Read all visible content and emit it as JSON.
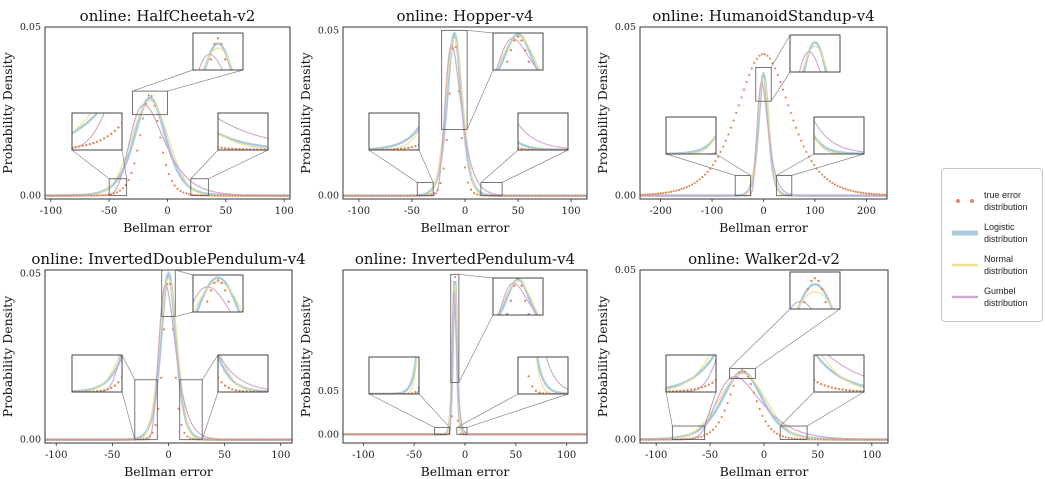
{
  "chart_data": [
    {
      "type": "line",
      "title": "online: HalfCheetah-v2",
      "xlabel": "Bellman error",
      "ylabel": "Probability Density",
      "xticks": [
        -100,
        -50,
        0,
        50,
        100
      ],
      "yticks": [
        0.0,
        0.05
      ],
      "xlim": [
        -105,
        105
      ],
      "ylim": [
        -0.001,
        0.05
      ],
      "peak_center": -15,
      "peak_value": 0.029,
      "logistic_scale": 9,
      "true_error": {
        "peak": 0.03,
        "scale": 9,
        "points": 85
      }
    },
    {
      "type": "line",
      "title": "online: Hopper-v4",
      "xlabel": "Bellman error",
      "ylabel": "Probability Density",
      "xticks": [
        -100,
        -50,
        0,
        50,
        100
      ],
      "yticks": [
        0.0,
        0.05
      ],
      "xlim": [
        -115,
        115
      ],
      "ylim": [
        -0.001,
        0.051
      ],
      "peak_center": -10,
      "peak_value": 0.049,
      "logistic_scale": 4.6,
      "true_error": {
        "peak": 0.047,
        "scale": 5.2,
        "points": 80
      }
    },
    {
      "type": "line",
      "title": "online: HumanoidStandup-v4",
      "xlabel": "Bellman error",
      "ylabel": "Probability Density",
      "xticks": [
        -200,
        -100,
        0,
        100,
        200
      ],
      "yticks": [
        0.0,
        0.05
      ],
      "xlim": [
        -240,
        240
      ],
      "ylim": [
        -0.001,
        0.05
      ],
      "peak_center": 0,
      "peak_value": 0.036,
      "logistic_scale": 6.5,
      "true_error": {
        "peak": 0.042,
        "scale": 55,
        "points": 95
      }
    },
    {
      "type": "line",
      "title": "online: InvertedDoublePendulum-v4",
      "xlabel": "Bellman error",
      "ylabel": "Probability Density",
      "xticks": [
        -100,
        -50,
        0,
        50,
        100
      ],
      "yticks": [
        0.0,
        0.05
      ],
      "xlim": [
        -110,
        110
      ],
      "ylim": [
        -0.001,
        0.051
      ],
      "peak_center": 0,
      "peak_value": 0.05,
      "logistic_scale": 4.5,
      "true_error": {
        "peak": 0.049,
        "scale": 4.8,
        "points": 85
      }
    },
    {
      "type": "line",
      "title": "online: InvertedPendulum-v4",
      "xlabel": "Bellman error",
      "ylabel": "Probability Density",
      "xticks": [
        -100,
        -50,
        0,
        50,
        100
      ],
      "yticks": [
        0.0,
        0.05
      ],
      "xlim": [
        -120,
        120
      ],
      "ylim": [
        -0.01,
        0.19
      ],
      "peak_center": -10,
      "peak_value": 0.18,
      "logistic_scale": 1.3,
      "true_error": {
        "peak": 0.183,
        "scale": 1.2,
        "points": 85
      }
    },
    {
      "type": "line",
      "title": "online: Walker2d-v2",
      "xlabel": "Bellman error",
      "ylabel": "Probability Density",
      "xticks": [
        -100,
        -50,
        0,
        50,
        100
      ],
      "yticks": [
        0.0,
        0.05
      ],
      "xlim": [
        -115,
        115
      ],
      "ylim": [
        -0.001,
        0.05
      ],
      "peak_center": -20,
      "peak_value": 0.02,
      "logistic_scale": 12.5,
      "true_error": {
        "peak": 0.0205,
        "scale": 13,
        "points": 85
      }
    }
  ],
  "legend": {
    "items": [
      {
        "label": "true error distribution",
        "color": "#e08a5d",
        "style": "dots"
      },
      {
        "label": "Logistic distribution",
        "color": "#a8cbe0",
        "style": "thick-line"
      },
      {
        "label": "Normal distribution",
        "color": "#efe08c",
        "style": "line"
      },
      {
        "label": "Gumbel distribution",
        "color": "#cfa7cf",
        "style": "line"
      }
    ]
  },
  "colors": {
    "true_error": "#e08a5d",
    "logistic": "#a8cbe0",
    "normal": "#efe08c",
    "gumbel": "#cfa7cf",
    "frame": "#333333"
  }
}
